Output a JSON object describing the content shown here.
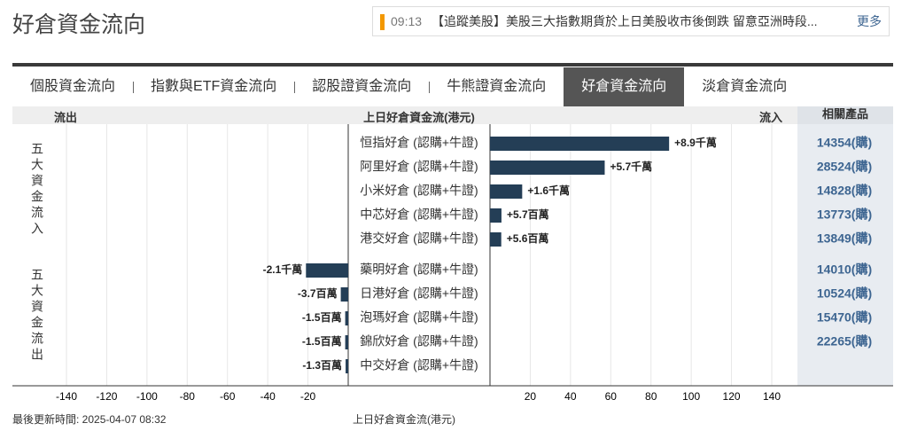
{
  "header": {
    "title": "好倉資金流向"
  },
  "news": {
    "time": "09:13",
    "text": "【追蹤美股】美股三大指數期貨於上日美股收市後倒跌 留意亞洲時段...",
    "more": "更多"
  },
  "tabs": [
    "個股資金流向",
    "指數與ETF資金流向",
    "認股證資金流向",
    "牛熊證資金流向",
    "好倉資金流向",
    "淡倉資金流向"
  ],
  "active_tab": 4,
  "columns": {
    "outflow": "流出",
    "center": "上日好倉資金流(港元)",
    "inflow": "流入",
    "products": "相關產品"
  },
  "groups": [
    "五大資金流入",
    "五大資金流出"
  ],
  "chart_data": {
    "type": "bar",
    "orientation": "horizontal",
    "categories": [
      "恒指好倉 (認購+牛證)",
      "阿里好倉 (認購+牛證)",
      "小米好倉 (認購+牛證)",
      "中芯好倉 (認購+牛證)",
      "港交好倉 (認購+牛證)",
      "藥明好倉 (認購+牛證)",
      "日港好倉 (認購+牛證)",
      "泡瑪好倉 (認購+牛證)",
      "錦欣好倉 (認購+牛證)",
      "中交好倉 (認購+牛證)"
    ],
    "values": [
      89,
      57,
      16,
      5.7,
      5.6,
      -21,
      -3.7,
      -1.5,
      -1.5,
      -1.3
    ],
    "value_labels": [
      "+8.9千萬",
      "+5.7千萬",
      "+1.6千萬",
      "+5.7百萬",
      "+5.6百萬",
      "-2.1千萬",
      "-3.7百萬",
      "-1.5百萬",
      "-1.5百萬",
      "-1.3百萬"
    ],
    "color": "#243e56",
    "products": [
      "14354(購)",
      "28524(購)",
      "14828(購)",
      "13773(購)",
      "13849(購)",
      "14010(購)",
      "10524(購)",
      "15470(購)",
      "22265(購)",
      null
    ],
    "xlim": [
      -140,
      140
    ],
    "xticks": [
      -140,
      -120,
      -100,
      -80,
      -60,
      -40,
      -20,
      20,
      40,
      60,
      80,
      100,
      120,
      140
    ],
    "xlabel": "上日好倉資金流(港元)",
    "grid": true
  },
  "footer": {
    "updated": "最後更新時間: 2025-04-07 08:32"
  }
}
